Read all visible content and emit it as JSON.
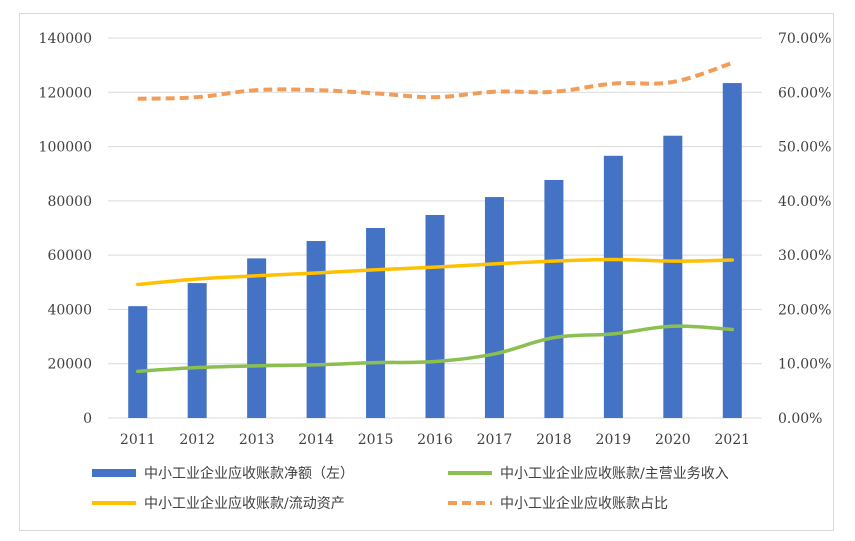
{
  "chart_data": {
    "type": "bar+line",
    "categories": [
      "2011",
      "2012",
      "2013",
      "2014",
      "2015",
      "2016",
      "2017",
      "2018",
      "2019",
      "2020",
      "2021"
    ],
    "series": [
      {
        "name": "中小工业企业应收账款净额（左）",
        "type": "bar",
        "axis": "left",
        "color": "#4472c4",
        "values": [
          41200,
          49700,
          58800,
          65200,
          70000,
          74800,
          81400,
          87700,
          96600,
          104000,
          123400
        ]
      },
      {
        "name": "中小工业企业应收账款/主营业务收入",
        "type": "line",
        "axis": "right",
        "color": "#8cbf52",
        "values": [
          8.6,
          9.3,
          9.6,
          9.8,
          10.2,
          10.4,
          11.8,
          14.8,
          15.5,
          16.9,
          16.3
        ]
      },
      {
        "name": "中小工业企业应收账款/流动资产",
        "type": "line",
        "axis": "right",
        "color": "#ffc000",
        "values": [
          24.6,
          25.6,
          26.2,
          26.7,
          27.3,
          27.8,
          28.4,
          28.9,
          29.2,
          28.9,
          29.1
        ]
      },
      {
        "name": "中小工业企业应收账款占比",
        "type": "line",
        "dashed": true,
        "axis": "right",
        "color": "#f29c5a",
        "values": [
          58.8,
          59.1,
          60.4,
          60.4,
          59.8,
          59.1,
          60.1,
          60.1,
          61.6,
          61.9,
          65.4
        ]
      }
    ],
    "left_axis": {
      "min": 0,
      "max": 140000,
      "step": 20000,
      "ticks": [
        "0",
        "20000",
        "40000",
        "60000",
        "80000",
        "100000",
        "120000",
        "140000"
      ]
    },
    "right_axis": {
      "min": 0,
      "max": 70,
      "step": 10,
      "ticks": [
        "0.00%",
        "10.00%",
        "20.00%",
        "30.00%",
        "40.00%",
        "50.00%",
        "60.00%",
        "70.00%"
      ]
    },
    "grid": true,
    "legend_position": "bottom"
  }
}
